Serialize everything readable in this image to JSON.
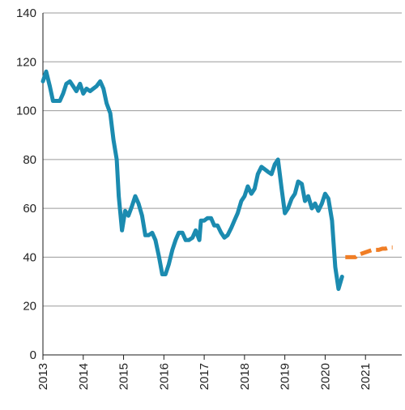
{
  "chart_data": {
    "type": "line",
    "title": "",
    "xlabel": "",
    "ylabel": "",
    "ylim": [
      0,
      140
    ],
    "xlim": [
      2013,
      2021.9
    ],
    "grid": "horizontal",
    "legend": "none",
    "y_ticks": [
      "0",
      "20",
      "40",
      "60",
      "80",
      "100",
      "120",
      "140"
    ],
    "x_ticks": [
      "2013",
      "2014",
      "2015",
      "2016",
      "2017",
      "2018",
      "2019",
      "2020",
      "2021"
    ],
    "series": [
      {
        "color": "#1b8bb0",
        "style": "solid",
        "points": [
          [
            2013.0,
            112
          ],
          [
            2013.08,
            116
          ],
          [
            2013.17,
            110
          ],
          [
            2013.25,
            104
          ],
          [
            2013.33,
            104
          ],
          [
            2013.42,
            104
          ],
          [
            2013.5,
            107
          ],
          [
            2013.58,
            111
          ],
          [
            2013.67,
            112
          ],
          [
            2013.75,
            110
          ],
          [
            2013.83,
            108
          ],
          [
            2013.92,
            111
          ],
          [
            2014.0,
            107
          ],
          [
            2014.08,
            109
          ],
          [
            2014.17,
            108
          ],
          [
            2014.25,
            109
          ],
          [
            2014.33,
            110
          ],
          [
            2014.42,
            112
          ],
          [
            2014.5,
            109
          ],
          [
            2014.58,
            103
          ],
          [
            2014.67,
            99
          ],
          [
            2014.75,
            88
          ],
          [
            2014.83,
            80
          ],
          [
            2014.88,
            65
          ],
          [
            2014.96,
            51
          ],
          [
            2015.04,
            59
          ],
          [
            2015.12,
            57
          ],
          [
            2015.21,
            61
          ],
          [
            2015.29,
            65
          ],
          [
            2015.37,
            62
          ],
          [
            2015.46,
            57
          ],
          [
            2015.54,
            49
          ],
          [
            2015.62,
            49
          ],
          [
            2015.71,
            50
          ],
          [
            2015.79,
            47
          ],
          [
            2015.88,
            40
          ],
          [
            2015.96,
            33
          ],
          [
            2016.04,
            33
          ],
          [
            2016.12,
            37
          ],
          [
            2016.21,
            43
          ],
          [
            2016.29,
            47
          ],
          [
            2016.37,
            50
          ],
          [
            2016.46,
            50
          ],
          [
            2016.54,
            47
          ],
          [
            2016.62,
            47
          ],
          [
            2016.71,
            48
          ],
          [
            2016.79,
            51
          ],
          [
            2016.88,
            47
          ],
          [
            2016.92,
            55
          ],
          [
            2017.0,
            55
          ],
          [
            2017.08,
            56
          ],
          [
            2017.17,
            56
          ],
          [
            2017.25,
            53
          ],
          [
            2017.33,
            53
          ],
          [
            2017.42,
            50
          ],
          [
            2017.5,
            48
          ],
          [
            2017.58,
            49
          ],
          [
            2017.67,
            52
          ],
          [
            2017.75,
            55
          ],
          [
            2017.83,
            58
          ],
          [
            2017.92,
            63
          ],
          [
            2018.0,
            65
          ],
          [
            2018.08,
            69
          ],
          [
            2018.17,
            66
          ],
          [
            2018.25,
            68
          ],
          [
            2018.33,
            74
          ],
          [
            2018.42,
            77
          ],
          [
            2018.5,
            76
          ],
          [
            2018.58,
            75
          ],
          [
            2018.67,
            74
          ],
          [
            2018.75,
            78
          ],
          [
            2018.83,
            80
          ],
          [
            2018.92,
            68
          ],
          [
            2019.0,
            58
          ],
          [
            2019.08,
            60
          ],
          [
            2019.17,
            64
          ],
          [
            2019.25,
            66
          ],
          [
            2019.33,
            71
          ],
          [
            2019.42,
            70
          ],
          [
            2019.5,
            63
          ],
          [
            2019.58,
            65
          ],
          [
            2019.67,
            60
          ],
          [
            2019.75,
            62
          ],
          [
            2019.83,
            59
          ],
          [
            2019.92,
            62
          ],
          [
            2020.0,
            66
          ],
          [
            2020.08,
            64
          ],
          [
            2020.17,
            55
          ],
          [
            2020.25,
            36
          ],
          [
            2020.33,
            27
          ],
          [
            2020.42,
            32
          ]
        ]
      },
      {
        "color": "#f07e26",
        "style": "dashed",
        "points": [
          [
            2020.5,
            40
          ],
          [
            2020.58,
            40
          ],
          [
            2020.67,
            40
          ],
          [
            2020.75,
            40
          ],
          [
            2020.83,
            41
          ],
          [
            2021.17,
            43
          ],
          [
            2021.25,
            43
          ],
          [
            2021.33,
            43
          ],
          [
            2021.42,
            43.5
          ],
          [
            2021.5,
            43.5
          ],
          [
            2021.58,
            44
          ],
          [
            2021.67,
            44
          ]
        ]
      }
    ]
  }
}
